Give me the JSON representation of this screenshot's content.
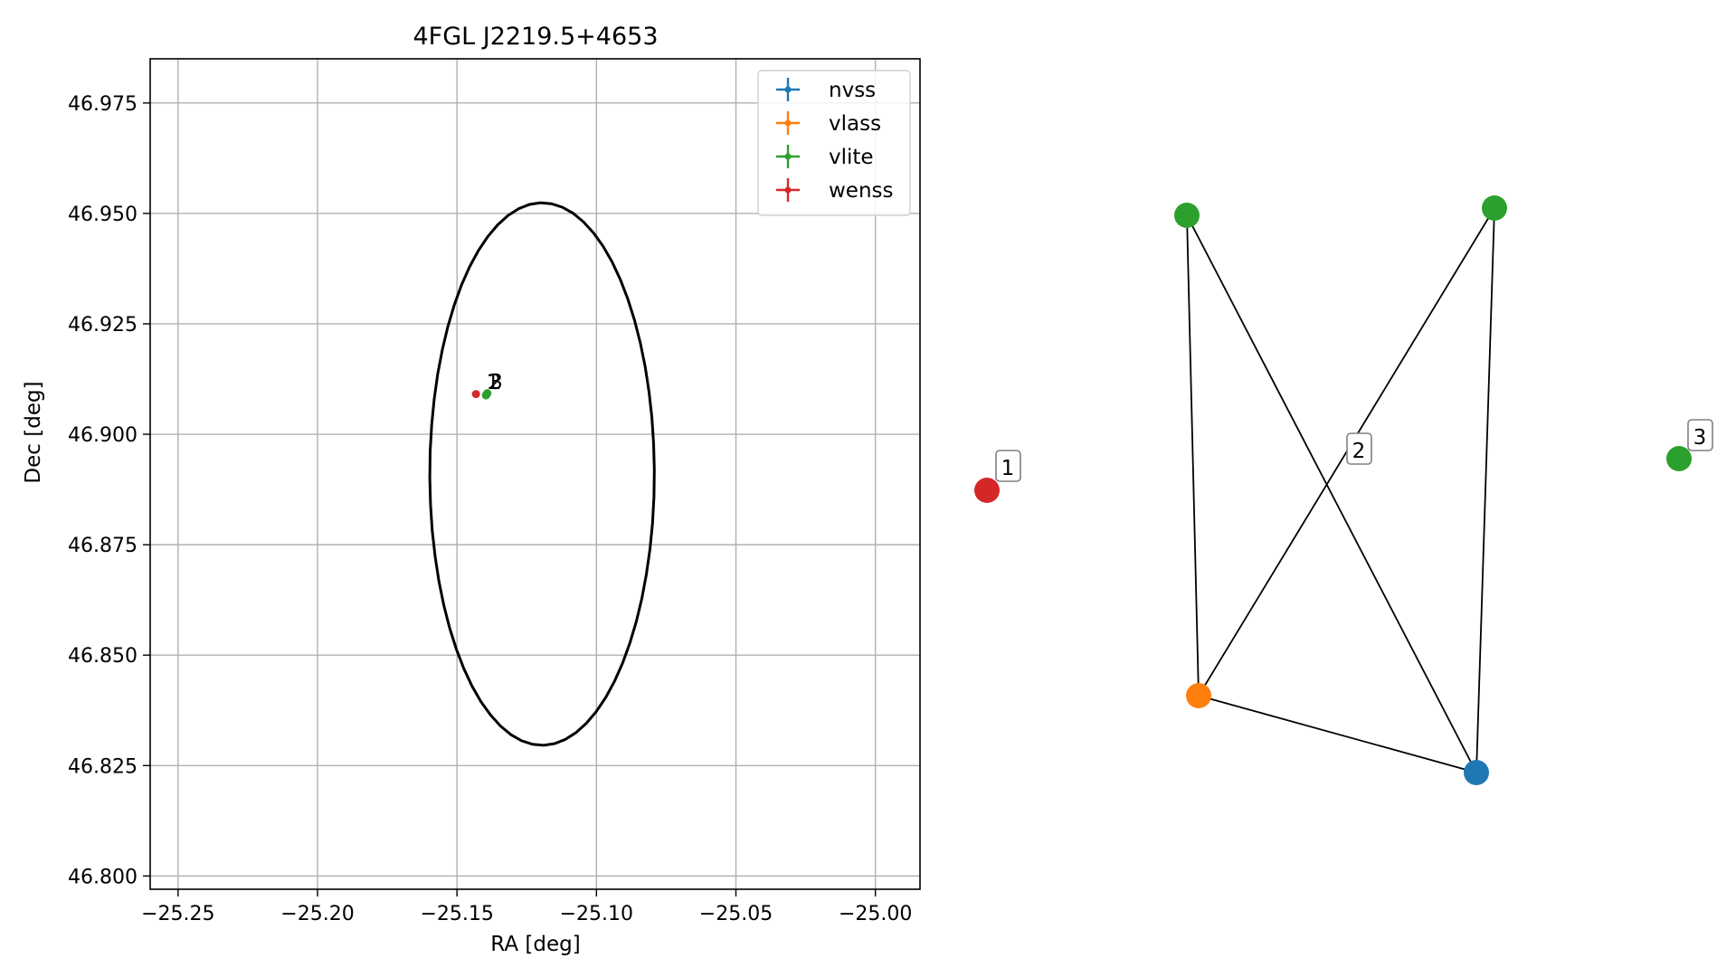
{
  "chart_data": [
    {
      "type": "scatter",
      "title": "4FGL J2219.5+4653",
      "xlabel": "RA [deg]",
      "ylabel": "Dec [deg]",
      "xlim": [
        -25.26,
        -24.984
      ],
      "ylim": [
        46.797,
        46.985
      ],
      "xticks": [
        -25.25,
        -25.2,
        -25.15,
        -25.1,
        -25.05,
        -25.0
      ],
      "xtick_labels": [
        "−25.25",
        "−25.20",
        "−25.15",
        "−25.10",
        "−25.05",
        "−25.00"
      ],
      "yticks": [
        46.8,
        46.825,
        46.85,
        46.875,
        46.9,
        46.925,
        46.95,
        46.975
      ],
      "ytick_labels": [
        "46.800",
        "46.825",
        "46.850",
        "46.875",
        "46.900",
        "46.925",
        "46.950",
        "46.975"
      ],
      "grid": true,
      "legend_placement": "upper right",
      "ellipse": {
        "center_ra": -25.1195,
        "center_dec": 46.891,
        "semi_axis_ra": 0.0405,
        "semi_axis_dec": 0.0618,
        "angle_deg": -8,
        "color": "#000000"
      },
      "series": [
        {
          "name": "nvss",
          "color": "#1f77b4",
          "points": [
            {
              "ra": -25.1395,
              "dec": 46.909
            }
          ]
        },
        {
          "name": "vlass",
          "color": "#ff7f0e",
          "points": [
            {
              "ra": -25.1393,
              "dec": 46.9091
            }
          ]
        },
        {
          "name": "vlite",
          "color": "#2ca02c",
          "points": [
            {
              "ra": -25.1396,
              "dec": 46.9088
            },
            {
              "ra": -25.1391,
              "dec": 46.9093
            }
          ]
        },
        {
          "name": "wenss",
          "color": "#d62728",
          "points": [
            {
              "ra": -25.1432,
              "dec": 46.9091
            }
          ]
        }
      ],
      "annotations": [
        {
          "text": "1",
          "ra": -25.1395,
          "dec": 46.9105
        },
        {
          "text": "2",
          "ra": -25.1388,
          "dec": 46.9105
        },
        {
          "text": "3",
          "ra": -25.1383,
          "dec": 46.9105
        }
      ]
    },
    {
      "type": "network",
      "nodes": [
        {
          "id": "wenss",
          "color": "#d62728"
        },
        {
          "id": "vlite_a",
          "color": "#2ca02c"
        },
        {
          "id": "vlite_b",
          "color": "#2ca02c"
        },
        {
          "id": "vlite_c",
          "color": "#2ca02c"
        },
        {
          "id": "vlass",
          "color": "#ff7f0e"
        },
        {
          "id": "nvss",
          "color": "#1f77b4"
        }
      ],
      "edges": [
        [
          "vlite_a",
          "vlass"
        ],
        [
          "vlite_a",
          "nvss"
        ],
        [
          "vlite_b",
          "vlass"
        ],
        [
          "vlite_b",
          "nvss"
        ],
        [
          "vlass",
          "nvss"
        ]
      ],
      "group_labels": [
        {
          "text": "1",
          "group": "wenss"
        },
        {
          "text": "2",
          "group": "connected"
        },
        {
          "text": "3",
          "group": "vlite_c"
        }
      ]
    }
  ]
}
